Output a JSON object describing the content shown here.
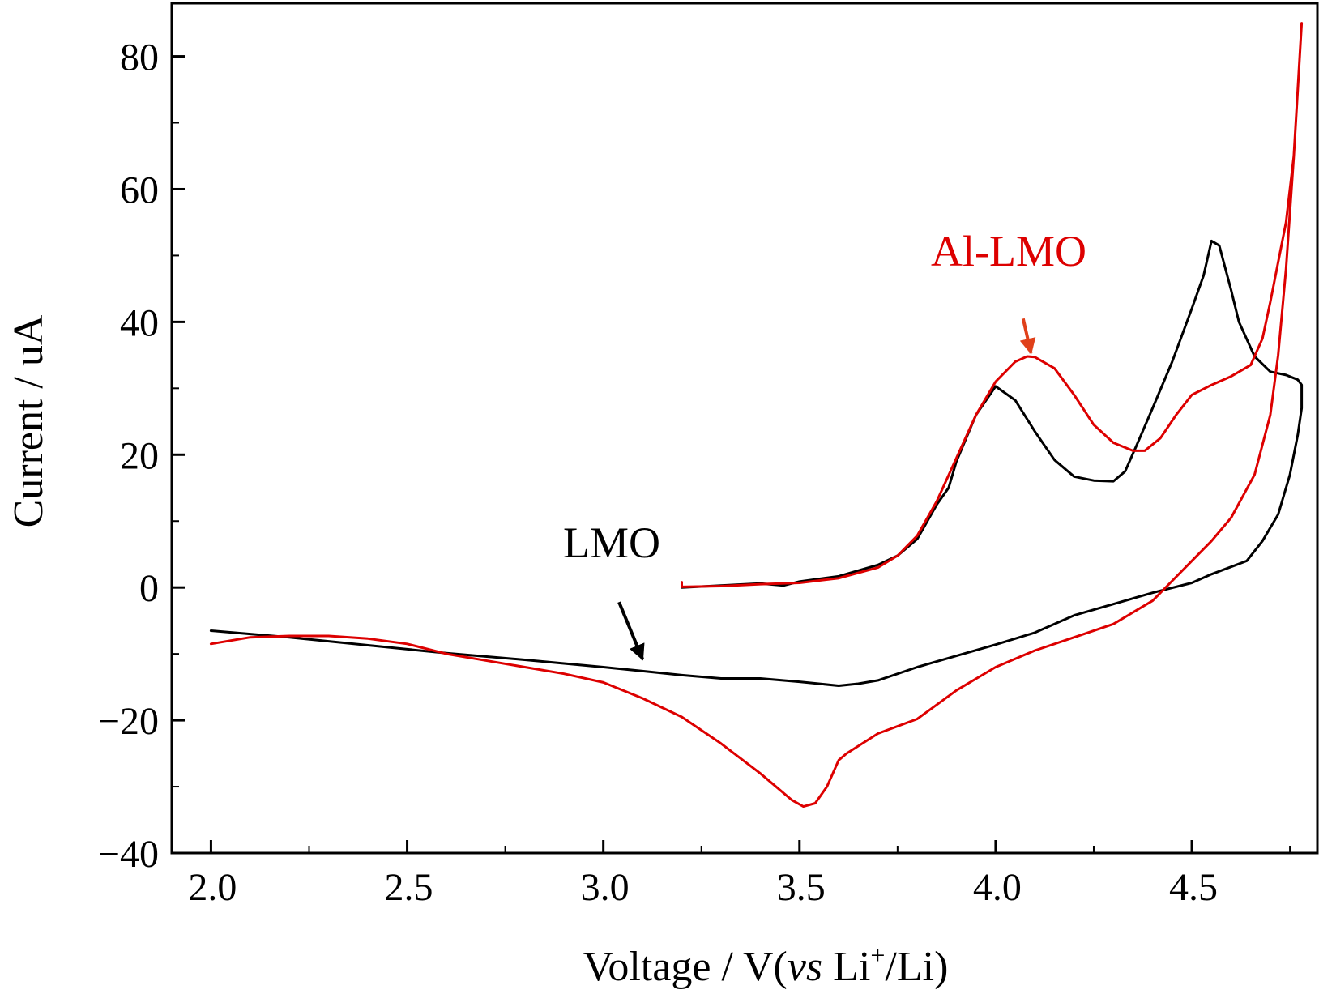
{
  "chart_data": {
    "type": "line",
    "xlabel": {
      "prefix": "Voltage / V(",
      "italic": "vs",
      "li": " Li",
      "sup": "+",
      "suffix": "/Li)"
    },
    "ylabel": "Current / uA",
    "xlim": [
      1.9,
      4.82
    ],
    "ylim": [
      -40,
      88
    ],
    "xticks": [
      2.0,
      2.5,
      3.0,
      3.5,
      4.0,
      4.5
    ],
    "xtick_labels": [
      "2.0",
      "2.5",
      "3.0",
      "3.5",
      "4.0",
      "4.5"
    ],
    "yticks": [
      -40,
      -20,
      0,
      20,
      40,
      60,
      80
    ],
    "ytick_labels": [
      "−40",
      "−20",
      "0",
      "20",
      "40",
      "60",
      "80"
    ],
    "grid": false,
    "series": [
      {
        "name": "LMO",
        "color": "#000000",
        "points": [
          [
            3.2,
            0.0
          ],
          [
            3.3,
            0.3
          ],
          [
            3.4,
            0.6
          ],
          [
            3.46,
            0.3
          ],
          [
            3.5,
            0.9
          ],
          [
            3.6,
            1.7
          ],
          [
            3.7,
            3.4
          ],
          [
            3.75,
            4.8
          ],
          [
            3.8,
            7.3
          ],
          [
            3.85,
            12.5
          ],
          [
            3.88,
            15.0
          ],
          [
            3.9,
            19.0
          ],
          [
            3.95,
            26.0
          ],
          [
            4.0,
            30.3
          ],
          [
            4.05,
            28.2
          ],
          [
            4.1,
            23.5
          ],
          [
            4.15,
            19.2
          ],
          [
            4.2,
            16.7
          ],
          [
            4.25,
            16.1
          ],
          [
            4.3,
            16.0
          ],
          [
            4.33,
            17.5
          ],
          [
            4.36,
            21.5
          ],
          [
            4.4,
            27.0
          ],
          [
            4.45,
            34.0
          ],
          [
            4.5,
            42.0
          ],
          [
            4.53,
            47.0
          ],
          [
            4.55,
            52.2
          ],
          [
            4.57,
            51.5
          ],
          [
            4.6,
            44.8
          ],
          [
            4.62,
            40.0
          ],
          [
            4.66,
            34.8
          ],
          [
            4.7,
            32.5
          ],
          [
            4.74,
            32.0
          ],
          [
            4.77,
            31.3
          ],
          [
            4.78,
            30.5
          ],
          [
            4.78,
            27.0
          ],
          [
            4.77,
            23.0
          ],
          [
            4.75,
            17.0
          ],
          [
            4.72,
            11.0
          ],
          [
            4.68,
            7.0
          ],
          [
            4.64,
            4.0
          ],
          [
            4.55,
            2.0
          ],
          [
            4.5,
            0.7
          ],
          [
            4.4,
            -0.8
          ],
          [
            4.3,
            -2.5
          ],
          [
            4.2,
            -4.2
          ],
          [
            4.1,
            -6.8
          ],
          [
            4.0,
            -8.6
          ],
          [
            3.9,
            -10.3
          ],
          [
            3.8,
            -12.0
          ],
          [
            3.7,
            -14.0
          ],
          [
            3.65,
            -14.5
          ],
          [
            3.6,
            -14.8
          ],
          [
            3.5,
            -14.2
          ],
          [
            3.4,
            -13.7
          ],
          [
            3.3,
            -13.7
          ],
          [
            3.2,
            -13.2
          ],
          [
            3.1,
            -12.6
          ],
          [
            3.0,
            -12.0
          ],
          [
            2.8,
            -10.9
          ],
          [
            2.6,
            -9.9
          ],
          [
            2.4,
            -8.7
          ],
          [
            2.2,
            -7.5
          ],
          [
            2.0,
            -6.5
          ]
        ]
      },
      {
        "name": "Al-LMO",
        "color": "#dd0000",
        "points": [
          [
            3.2,
            0.8
          ],
          [
            3.2,
            0.1
          ],
          [
            3.3,
            0.2
          ],
          [
            3.4,
            0.5
          ],
          [
            3.5,
            0.7
          ],
          [
            3.6,
            1.4
          ],
          [
            3.7,
            3.0
          ],
          [
            3.75,
            4.8
          ],
          [
            3.8,
            7.8
          ],
          [
            3.85,
            13.0
          ],
          [
            3.9,
            19.5
          ],
          [
            3.95,
            26.0
          ],
          [
            4.0,
            31.0
          ],
          [
            4.05,
            34.0
          ],
          [
            4.08,
            34.8
          ],
          [
            4.1,
            34.7
          ],
          [
            4.15,
            33.0
          ],
          [
            4.2,
            29.0
          ],
          [
            4.25,
            24.5
          ],
          [
            4.3,
            21.8
          ],
          [
            4.35,
            20.6
          ],
          [
            4.38,
            20.6
          ],
          [
            4.42,
            22.5
          ],
          [
            4.46,
            26.0
          ],
          [
            4.5,
            29.0
          ],
          [
            4.55,
            30.5
          ],
          [
            4.6,
            31.8
          ],
          [
            4.65,
            33.5
          ],
          [
            4.68,
            37.5
          ],
          [
            4.7,
            43.0
          ],
          [
            4.72,
            49.0
          ],
          [
            4.74,
            55.0
          ],
          [
            4.76,
            65.0
          ],
          [
            4.77,
            75.0
          ],
          [
            4.78,
            85.0
          ],
          [
            4.76,
            65.0
          ],
          [
            4.74,
            48.0
          ],
          [
            4.72,
            35.0
          ],
          [
            4.7,
            26.0
          ],
          [
            4.66,
            17.0
          ],
          [
            4.6,
            10.5
          ],
          [
            4.55,
            7.0
          ],
          [
            4.5,
            4.0
          ],
          [
            4.45,
            1.0
          ],
          [
            4.4,
            -2.0
          ],
          [
            4.3,
            -5.5
          ],
          [
            4.2,
            -7.5
          ],
          [
            4.1,
            -9.5
          ],
          [
            4.0,
            -12.0
          ],
          [
            3.9,
            -15.5
          ],
          [
            3.8,
            -19.8
          ],
          [
            3.7,
            -22.0
          ],
          [
            3.62,
            -25.0
          ],
          [
            3.6,
            -26.0
          ],
          [
            3.57,
            -30.0
          ],
          [
            3.54,
            -32.5
          ],
          [
            3.51,
            -33.0
          ],
          [
            3.48,
            -32.0
          ],
          [
            3.4,
            -28.0
          ],
          [
            3.3,
            -23.5
          ],
          [
            3.2,
            -19.5
          ],
          [
            3.1,
            -16.7
          ],
          [
            3.0,
            -14.3
          ],
          [
            2.9,
            -13.0
          ],
          [
            2.8,
            -12.0
          ],
          [
            2.7,
            -11.0
          ],
          [
            2.6,
            -10.0
          ],
          [
            2.5,
            -8.5
          ],
          [
            2.4,
            -7.7
          ],
          [
            2.3,
            -7.3
          ],
          [
            2.25,
            -7.3
          ],
          [
            2.2,
            -7.3
          ],
          [
            2.1,
            -7.5
          ],
          [
            2.0,
            -8.5
          ]
        ]
      }
    ],
    "annotations": [
      {
        "text": "LMO",
        "color": "#000000",
        "arrow_from": [
          3.04,
          -2.2
        ],
        "arrow_to": [
          3.1,
          -10.8
        ]
      },
      {
        "text": "Al-LMO",
        "color": "#dd0000",
        "arrow_from": [
          4.07,
          40.5
        ],
        "arrow_to": [
          4.09,
          35.3
        ]
      }
    ]
  }
}
